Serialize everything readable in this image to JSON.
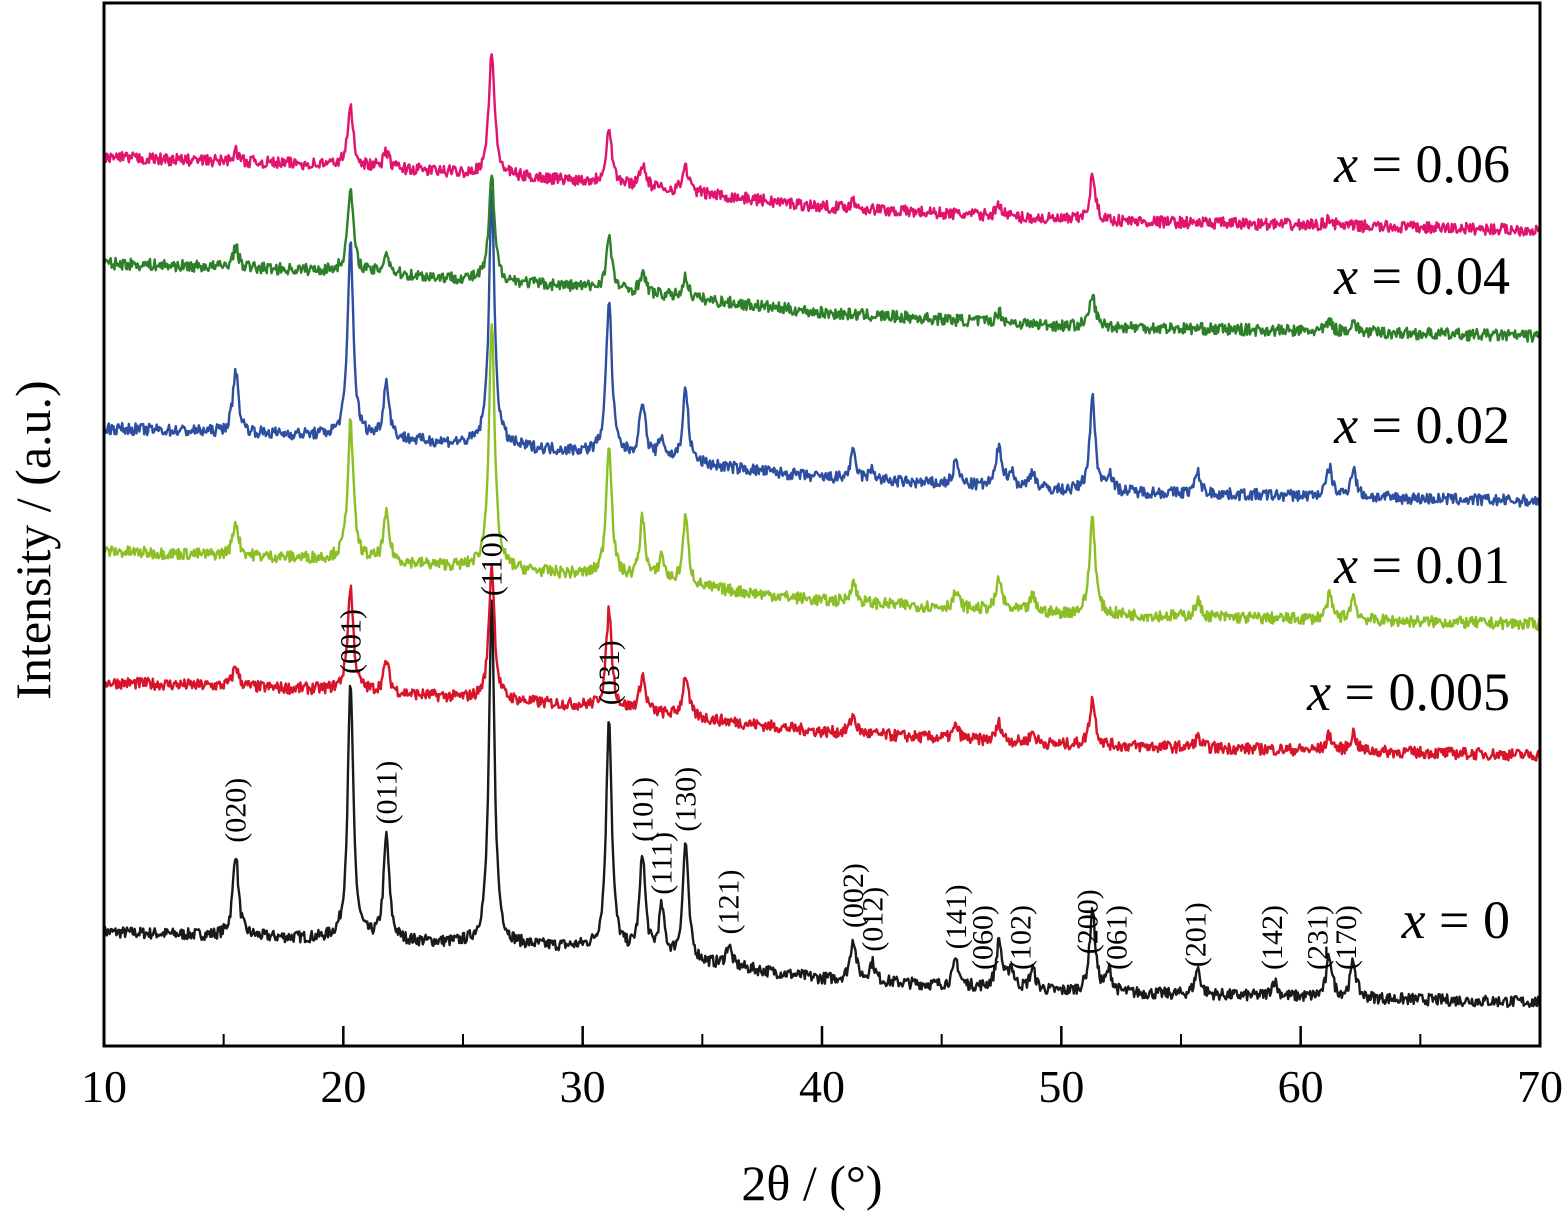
{
  "chart_data": {
    "type": "line",
    "xlabel": "2θ / (°)",
    "ylabel": "Intensity / (a.u.)",
    "xlim": [
      10,
      70
    ],
    "x_ticks": [
      10,
      20,
      30,
      40,
      50,
      60,
      70
    ],
    "x_minor_ticks": [
      15,
      25,
      35,
      45,
      55,
      65
    ],
    "grid": false,
    "y_scale": "arbitrary, stacked traces",
    "series": [
      {
        "name": "x = 0",
        "color": "#1a1a1a",
        "baseline": [
          [
            10,
            0.3
          ],
          [
            20,
            0.27
          ],
          [
            30,
            0.24
          ],
          [
            40,
            0.12
          ],
          [
            50,
            0.07
          ],
          [
            70,
            0.03
          ]
        ],
        "peaks": [
          [
            15.5,
            0.32
          ],
          [
            20.3,
            0.98
          ],
          [
            21.8,
            0.4
          ],
          [
            26.2,
            1.3
          ],
          [
            31.1,
            0.9
          ],
          [
            32.5,
            0.38
          ],
          [
            33.3,
            0.18
          ],
          [
            34.3,
            0.45
          ],
          [
            36.1,
            0.08
          ],
          [
            41.3,
            0.16
          ],
          [
            42.1,
            0.07
          ],
          [
            45.6,
            0.1
          ],
          [
            47.4,
            0.18
          ],
          [
            47.9,
            0.08
          ],
          [
            48.8,
            0.08
          ],
          [
            51.3,
            0.32
          ],
          [
            52.0,
            0.08
          ],
          [
            55.7,
            0.1
          ],
          [
            58.9,
            0.06
          ],
          [
            61.2,
            0.16
          ],
          [
            62.2,
            0.14
          ]
        ]
      },
      {
        "name": "x = 0.005",
        "color": "#d8142a",
        "baseline": [
          [
            10,
            0.31
          ],
          [
            20,
            0.28
          ],
          [
            30,
            0.22
          ],
          [
            40,
            0.12
          ],
          [
            50,
            0.07
          ],
          [
            70,
            0.03
          ]
        ],
        "peaks": [
          [
            15.5,
            0.08
          ],
          [
            20.3,
            0.4
          ],
          [
            21.8,
            0.12
          ],
          [
            26.2,
            0.52
          ],
          [
            31.1,
            0.38
          ],
          [
            32.5,
            0.14
          ],
          [
            34.3,
            0.16
          ],
          [
            41.3,
            0.07
          ],
          [
            45.6,
            0.05
          ],
          [
            47.4,
            0.07
          ],
          [
            48.8,
            0.04
          ],
          [
            51.3,
            0.18
          ],
          [
            55.7,
            0.04
          ],
          [
            61.2,
            0.06
          ],
          [
            62.2,
            0.07
          ]
        ]
      },
      {
        "name": "x = 0.01",
        "color": "#8cbf26",
        "baseline": [
          [
            10,
            0.31
          ],
          [
            20,
            0.28
          ],
          [
            30,
            0.22
          ],
          [
            40,
            0.12
          ],
          [
            50,
            0.07
          ],
          [
            70,
            0.03
          ]
        ],
        "peaks": [
          [
            15.5,
            0.13
          ],
          [
            20.3,
            0.53
          ],
          [
            21.8,
            0.18
          ],
          [
            26.2,
            0.95
          ],
          [
            31.1,
            0.52
          ],
          [
            32.5,
            0.24
          ],
          [
            33.3,
            0.1
          ],
          [
            34.3,
            0.26
          ],
          [
            41.3,
            0.08
          ],
          [
            45.6,
            0.06
          ],
          [
            47.4,
            0.12
          ],
          [
            48.8,
            0.06
          ],
          [
            51.3,
            0.38
          ],
          [
            55.7,
            0.06
          ],
          [
            61.2,
            0.09
          ],
          [
            62.2,
            0.09
          ]
        ]
      },
      {
        "name": "x = 0.02",
        "color": "#2e4fa0",
        "baseline": [
          [
            10,
            0.31
          ],
          [
            20,
            0.28
          ],
          [
            30,
            0.22
          ],
          [
            40,
            0.12
          ],
          [
            50,
            0.07
          ],
          [
            70,
            0.03
          ]
        ],
        "peaks": [
          [
            15.5,
            0.24
          ],
          [
            20.3,
            0.75
          ],
          [
            21.8,
            0.22
          ],
          [
            26.2,
            0.96
          ],
          [
            31.1,
            0.6
          ],
          [
            32.5,
            0.22
          ],
          [
            33.3,
            0.08
          ],
          [
            34.3,
            0.28
          ],
          [
            41.3,
            0.1
          ],
          [
            42.1,
            0.04
          ],
          [
            45.6,
            0.09
          ],
          [
            47.4,
            0.16
          ],
          [
            47.9,
            0.06
          ],
          [
            48.8,
            0.07
          ],
          [
            51.3,
            0.36
          ],
          [
            52.0,
            0.07
          ],
          [
            55.7,
            0.08
          ],
          [
            61.2,
            0.11
          ],
          [
            62.2,
            0.11
          ]
        ]
      },
      {
        "name": "x = 0.04",
        "color": "#2e7f2a",
        "baseline": [
          [
            10,
            0.31
          ],
          [
            20,
            0.28
          ],
          [
            30,
            0.22
          ],
          [
            40,
            0.12
          ],
          [
            50,
            0.07
          ],
          [
            70,
            0.03
          ]
        ],
        "peaks": [
          [
            15.5,
            0.08
          ],
          [
            20.3,
            0.32
          ],
          [
            21.8,
            0.08
          ],
          [
            26.2,
            0.4
          ],
          [
            31.1,
            0.2
          ],
          [
            32.5,
            0.08
          ],
          [
            34.3,
            0.08
          ],
          [
            47.4,
            0.04
          ],
          [
            51.3,
            0.12
          ],
          [
            61.2,
            0.04
          ],
          [
            62.2,
            0.04
          ]
        ]
      },
      {
        "name": "x = 0.06",
        "color": "#e0146e",
        "baseline": [
          [
            10,
            0.31
          ],
          [
            20,
            0.28
          ],
          [
            30,
            0.22
          ],
          [
            40,
            0.12
          ],
          [
            50,
            0.07
          ],
          [
            70,
            0.03
          ]
        ],
        "peaks": [
          [
            15.5,
            0.04
          ],
          [
            20.3,
            0.22
          ],
          [
            21.8,
            0.06
          ],
          [
            26.2,
            0.48
          ],
          [
            31.1,
            0.22
          ],
          [
            32.5,
            0.09
          ],
          [
            34.3,
            0.1
          ],
          [
            41.3,
            0.03
          ],
          [
            47.4,
            0.05
          ],
          [
            51.3,
            0.17
          ],
          [
            61.2,
            0.03
          ]
        ]
      }
    ],
    "annotations": [
      {
        "text": "(020)",
        "x": 15.5
      },
      {
        "text": "(001)",
        "x": 20.3
      },
      {
        "text": "(011)",
        "x": 21.8
      },
      {
        "text": "(110)",
        "x": 26.2
      },
      {
        "text": "(031)",
        "x": 31.1
      },
      {
        "text": "(101)",
        "x": 32.5
      },
      {
        "text": "(111)",
        "x": 33.3
      },
      {
        "text": "(130)",
        "x": 34.3
      },
      {
        "text": "(121)",
        "x": 36.1
      },
      {
        "text": "(002)",
        "x": 41.3
      },
      {
        "text": "(012)",
        "x": 42.1
      },
      {
        "text": "(141)",
        "x": 45.6
      },
      {
        "text": "(060)",
        "x": 46.7
      },
      {
        "text": "(102)",
        "x": 48.3
      },
      {
        "text": "(200)",
        "x": 51.1
      },
      {
        "text": "(061)",
        "x": 52.3
      },
      {
        "text": "(201)",
        "x": 55.6
      },
      {
        "text": "(142)",
        "x": 58.8
      },
      {
        "text": "(231)",
        "x": 60.7
      },
      {
        "text": "(170)",
        "x": 61.9
      }
    ]
  }
}
